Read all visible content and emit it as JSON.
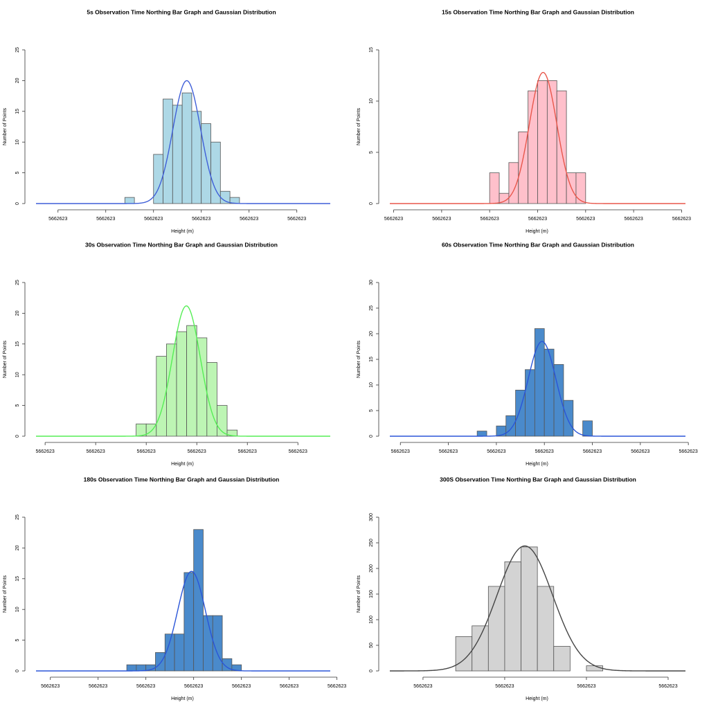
{
  "chart_data": [
    {
      "type": "histogram",
      "title": "5s Observation Time Northing Bar Graph and Gaussian Distribution",
      "xlabel": "Height (m)",
      "ylabel": "Number of Points",
      "bins": [
        5662622.97,
        5662622.98,
        5662622.99,
        5662623.0,
        5662623.01,
        5662623.02,
        5662623.03,
        5662623.04,
        5662623.05,
        5662623.06,
        5662623.07,
        5662623.08,
        5662623.09
      ],
      "values": [
        1,
        0,
        0,
        8,
        17,
        16,
        18,
        15,
        13,
        10,
        2,
        1
      ],
      "color": "#add8e6",
      "curve": {
        "mean": 5662623.0348,
        "sd": 0.0145,
        "peak": 20,
        "color": "#3f5fd8"
      },
      "xlim": [
        5662622.877,
        5662623.185
      ],
      "ylim": [
        0,
        25
      ],
      "xticks": [
        {
          "value": 5662622.9,
          "label": "5662623"
        },
        {
          "value": 5662622.95,
          "label": "5662623"
        },
        {
          "value": 5662623.0,
          "label": "5662623"
        },
        {
          "value": 5662623.05,
          "label": "5662623"
        },
        {
          "value": 5662623.1,
          "label": "5662623"
        },
        {
          "value": 5662623.15,
          "label": "5662623"
        }
      ],
      "yticks": [
        0,
        5,
        10,
        15,
        20,
        25
      ]
    },
    {
      "type": "histogram",
      "title": "15s Observation Time Northing Bar Graph and Gaussian Distribution",
      "xlabel": "Height (m)",
      "ylabel": "Number of Points",
      "bins": [
        5662623.0,
        5662623.01,
        5662623.02,
        5662623.03,
        5662623.04,
        5662623.05,
        5662623.06,
        5662623.07,
        5662623.08,
        5662623.09,
        5662623.1
      ],
      "values": [
        3,
        1,
        4,
        7,
        11,
        12,
        12,
        11,
        3,
        3
      ],
      "color": "#ffc0cb",
      "curve": {
        "mean": 5662623.0557,
        "sd": 0.0143,
        "peak": 12.8,
        "color": "#e8574b"
      },
      "xlim": [
        5662622.896,
        5662623.204
      ],
      "ylim": [
        0,
        15
      ],
      "xticks": [
        {
          "value": 5662622.9,
          "label": "5662623"
        },
        {
          "value": 5662622.95,
          "label": "5662623"
        },
        {
          "value": 5662623.0,
          "label": "5662623"
        },
        {
          "value": 5662623.05,
          "label": "5662623"
        },
        {
          "value": 5662623.1,
          "label": "5662623"
        },
        {
          "value": 5662623.15,
          "label": "5662623"
        },
        {
          "value": 5662623.2,
          "label": "5662623"
        }
      ],
      "yticks": [
        0,
        5,
        10,
        15
      ]
    },
    {
      "type": "histogram",
      "title": "30s Observation Time Northing Bar Graph and Gaussian Distribution",
      "xlabel": "Height (m)",
      "ylabel": "Number of Points",
      "bins": [
        5662622.99,
        5662623.0,
        5662623.01,
        5662623.02,
        5662623.03,
        5662623.04,
        5662623.05,
        5662623.06,
        5662623.07,
        5662623.08,
        5662623.09
      ],
      "values": [
        2,
        2,
        13,
        15,
        17,
        18,
        16,
        12,
        5,
        1
      ],
      "color": "#bdf5b4",
      "curve": {
        "mean": 5662623.0397,
        "sd": 0.0137,
        "peak": 21.2,
        "color": "#55ee55"
      },
      "xlim": [
        5662622.891,
        5662623.182
      ],
      "ylim": [
        0,
        25
      ],
      "xticks": [
        {
          "value": 5662622.9,
          "label": "5662623"
        },
        {
          "value": 5662622.95,
          "label": "5662623"
        },
        {
          "value": 5662623.0,
          "label": "5662623"
        },
        {
          "value": 5662623.05,
          "label": "5662623"
        },
        {
          "value": 5662623.1,
          "label": "5662623"
        },
        {
          "value": 5662623.15,
          "label": "5662623"
        }
      ],
      "yticks": [
        0,
        5,
        10,
        15,
        20,
        25
      ]
    },
    {
      "type": "histogram",
      "title": "60s Observation Time Northing Bar Graph and Gaussian Distribution",
      "xlabel": "Height (m)",
      "ylabel": "Number of Points",
      "bins": [
        5662622.98,
        5662622.99,
        5662623.0,
        5662623.01,
        5662623.02,
        5662623.03,
        5662623.04,
        5662623.05,
        5662623.06,
        5662623.07,
        5662623.08,
        5662623.09,
        5662623.1
      ],
      "values": [
        1,
        0,
        2,
        4,
        9,
        13,
        21,
        17,
        14,
        7,
        0,
        3
      ],
      "color": "#4a8acb",
      "curve": {
        "mean": 5662623.0476,
        "sd": 0.0144,
        "peak": 18.5,
        "color": "#2a55d8"
      },
      "xlim": [
        5662622.889,
        5662623.197
      ],
      "ylim": [
        0,
        30
      ],
      "xticks": [
        {
          "value": 5662622.9,
          "label": "5662623"
        },
        {
          "value": 5662622.95,
          "label": "5662623"
        },
        {
          "value": 5662623.0,
          "label": "5662623"
        },
        {
          "value": 5662623.05,
          "label": "5662623"
        },
        {
          "value": 5662623.1,
          "label": "5662623"
        },
        {
          "value": 5662623.15,
          "label": "5662623"
        },
        {
          "value": 5662623.2,
          "label": "5662623"
        }
      ],
      "yticks": [
        0,
        5,
        10,
        15,
        20,
        25,
        30
      ]
    },
    {
      "type": "histogram",
      "title": "180s Observation Time Northing Bar Graph and Gaussian Distribution",
      "xlabel": "Height (m)",
      "ylabel": "Number of Points",
      "bins": [
        5662622.98,
        5662622.99,
        5662623.0,
        5662623.01,
        5662623.02,
        5662623.03,
        5662623.04,
        5662623.05,
        5662623.06,
        5662623.07,
        5662623.08,
        5662623.09,
        5662623.1
      ],
      "values": [
        1,
        1,
        1,
        3,
        6,
        6,
        16,
        23,
        9,
        9,
        2,
        1
      ],
      "color": "#4a8acb",
      "curve": {
        "mean": 5662623.0478,
        "sd": 0.0145,
        "peak": 16.2,
        "color": "#2a55d8"
      },
      "xlim": [
        5662622.885,
        5662623.193
      ],
      "ylim": [
        0,
        25
      ],
      "xticks": [
        {
          "value": 5662622.9,
          "label": "5662623"
        },
        {
          "value": 5662622.95,
          "label": "5662623"
        },
        {
          "value": 5662623.0,
          "label": "5662623"
        },
        {
          "value": 5662623.05,
          "label": "5662623"
        },
        {
          "value": 5662623.1,
          "label": "5662623"
        },
        {
          "value": 5662623.15,
          "label": "5662623"
        },
        {
          "value": 5662623.2,
          "label": "5662623"
        }
      ],
      "yticks": [
        0,
        5,
        10,
        15,
        20,
        25
      ]
    },
    {
      "type": "histogram",
      "title": "300S Observation Time Northing Bar Graph and Gaussian Distribution",
      "xlabel": "Height (m)",
      "ylabel": "Number of Points",
      "bins": [
        5662622.97,
        5662622.98,
        5662622.99,
        5662623.0,
        5662623.01,
        5662623.02,
        5662623.03,
        5662623.04,
        5662623.05,
        5662623.06
      ],
      "values": [
        67,
        88,
        165,
        213,
        242,
        165,
        48,
        0,
        10
      ],
      "color": "#d3d3d3",
      "curve": {
        "mean": 5662623.0123,
        "sd": 0.017,
        "peak": 244,
        "color": "#444444"
      },
      "xlim": [
        5662622.9297,
        5662623.1106
      ],
      "ylim": [
        0,
        300
      ],
      "xticks": [
        {
          "value": 5662622.95,
          "label": "5662623"
        },
        {
          "value": 5662623.0,
          "label": "5662623"
        },
        {
          "value": 5662623.05,
          "label": "5662623"
        },
        {
          "value": 5662623.1,
          "label": "5662623"
        }
      ],
      "yticks": [
        0,
        50,
        100,
        150,
        200,
        250,
        300
      ]
    }
  ]
}
